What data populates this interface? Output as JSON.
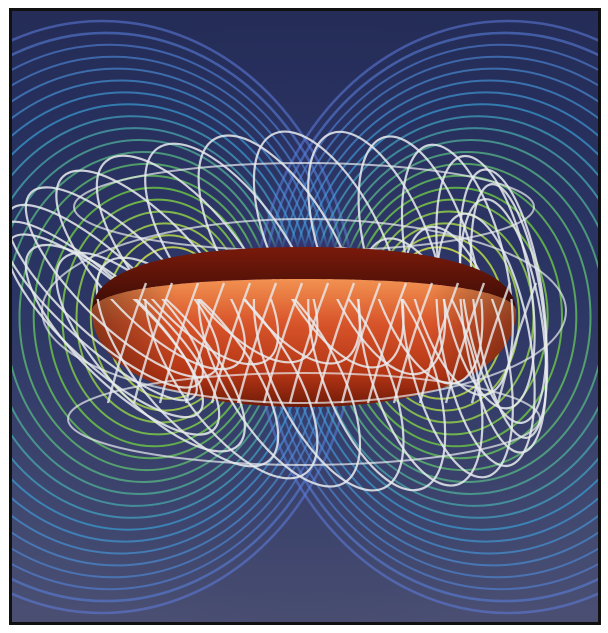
{
  "figure": {
    "subject": "torus-magnetic-field-visualization",
    "colors": {
      "background_top": "#242c57",
      "background_bottom": "#4a4f72",
      "frame_border": "#111111",
      "torus_core": "#c9401c",
      "torus_dark": "#6a1608",
      "torus_light": "#f08a48",
      "coil_wire": "#e9ecef",
      "field_outer": "#5f7de0",
      "field_mid": "#3aa0d8",
      "field_inner": "#6bc646",
      "field_core": "#e8dd50"
    }
  }
}
